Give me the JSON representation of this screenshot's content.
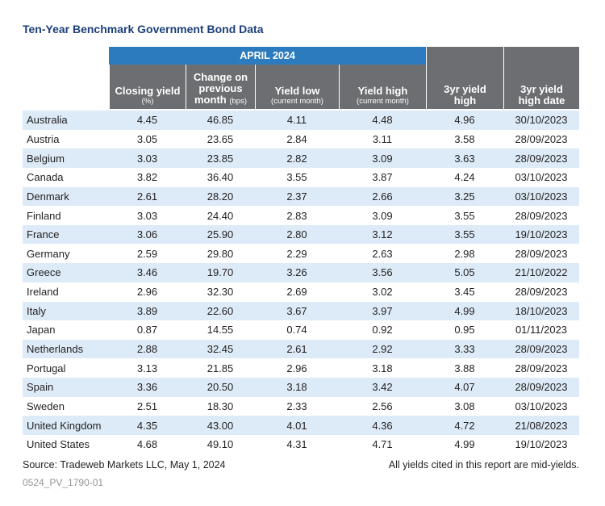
{
  "header": {
    "title": "Ten-Year Benchmark Government Bond Data",
    "period": "APRIL 2024"
  },
  "table": {
    "columns": [
      {
        "label": "Closing yield",
        "note": "(%)"
      },
      {
        "label": "Change on previous month",
        "note": "(bps)"
      },
      {
        "label": "Yield low",
        "note": "(current month)"
      },
      {
        "label": "Yield high",
        "note": "(current month)"
      },
      {
        "label": "3yr yield high"
      },
      {
        "label": "3yr yield high date"
      }
    ],
    "rows": [
      [
        "Australia",
        "4.45",
        "46.85",
        "4.11",
        "4.48",
        "4.96",
        "30/10/2023"
      ],
      [
        "Austria",
        "3.05",
        "23.65",
        "2.84",
        "3.11",
        "3.58",
        "28/09/2023"
      ],
      [
        "Belgium",
        "3.03",
        "23.85",
        "2.82",
        "3.09",
        "3.63",
        "28/09/2023"
      ],
      [
        "Canada",
        "3.82",
        "36.40",
        "3.55",
        "3.87",
        "4.24",
        "03/10/2023"
      ],
      [
        "Denmark",
        "2.61",
        "28.20",
        "2.37",
        "2.66",
        "3.25",
        "03/10/2023"
      ],
      [
        "Finland",
        "3.03",
        "24.40",
        "2.83",
        "3.09",
        "3.55",
        "28/09/2023"
      ],
      [
        "France",
        "3.06",
        "25.90",
        "2.80",
        "3.12",
        "3.55",
        "19/10/2023"
      ],
      [
        "Germany",
        "2.59",
        "29.80",
        "2.29",
        "2.63",
        "2.98",
        "28/09/2023"
      ],
      [
        "Greece",
        "3.46",
        "19.70",
        "3.26",
        "3.56",
        "5.05",
        "21/10/2022"
      ],
      [
        "Ireland",
        "2.96",
        "32.30",
        "2.69",
        "3.02",
        "3.45",
        "28/09/2023"
      ],
      [
        "Italy",
        "3.89",
        "22.60",
        "3.67",
        "3.97",
        "4.99",
        "18/10/2023"
      ],
      [
        "Japan",
        "0.87",
        "14.55",
        "0.74",
        "0.92",
        "0.95",
        "01/11/2023"
      ],
      [
        "Netherlands",
        "2.88",
        "32.45",
        "2.61",
        "2.92",
        "3.33",
        "28/09/2023"
      ],
      [
        "Portugal",
        "3.13",
        "21.85",
        "2.96",
        "3.18",
        "3.88",
        "28/09/2023"
      ],
      [
        "Spain",
        "3.36",
        "20.50",
        "3.18",
        "3.42",
        "4.07",
        "28/09/2023"
      ],
      [
        "Sweden",
        "2.51",
        "18.30",
        "2.33",
        "2.56",
        "3.08",
        "03/10/2023"
      ],
      [
        "United Kingdom",
        "4.35",
        "43.00",
        "4.01",
        "4.36",
        "4.72",
        "21/08/2023"
      ],
      [
        "United States",
        "4.68",
        "49.10",
        "4.31",
        "4.71",
        "4.99",
        "19/10/2023"
      ]
    ]
  },
  "footer": {
    "source": "Source: Tradeweb Markets LLC, May 1, 2024",
    "note": "All yields cited in this report are mid-yields.",
    "code": "0524_PV_1790-01"
  }
}
